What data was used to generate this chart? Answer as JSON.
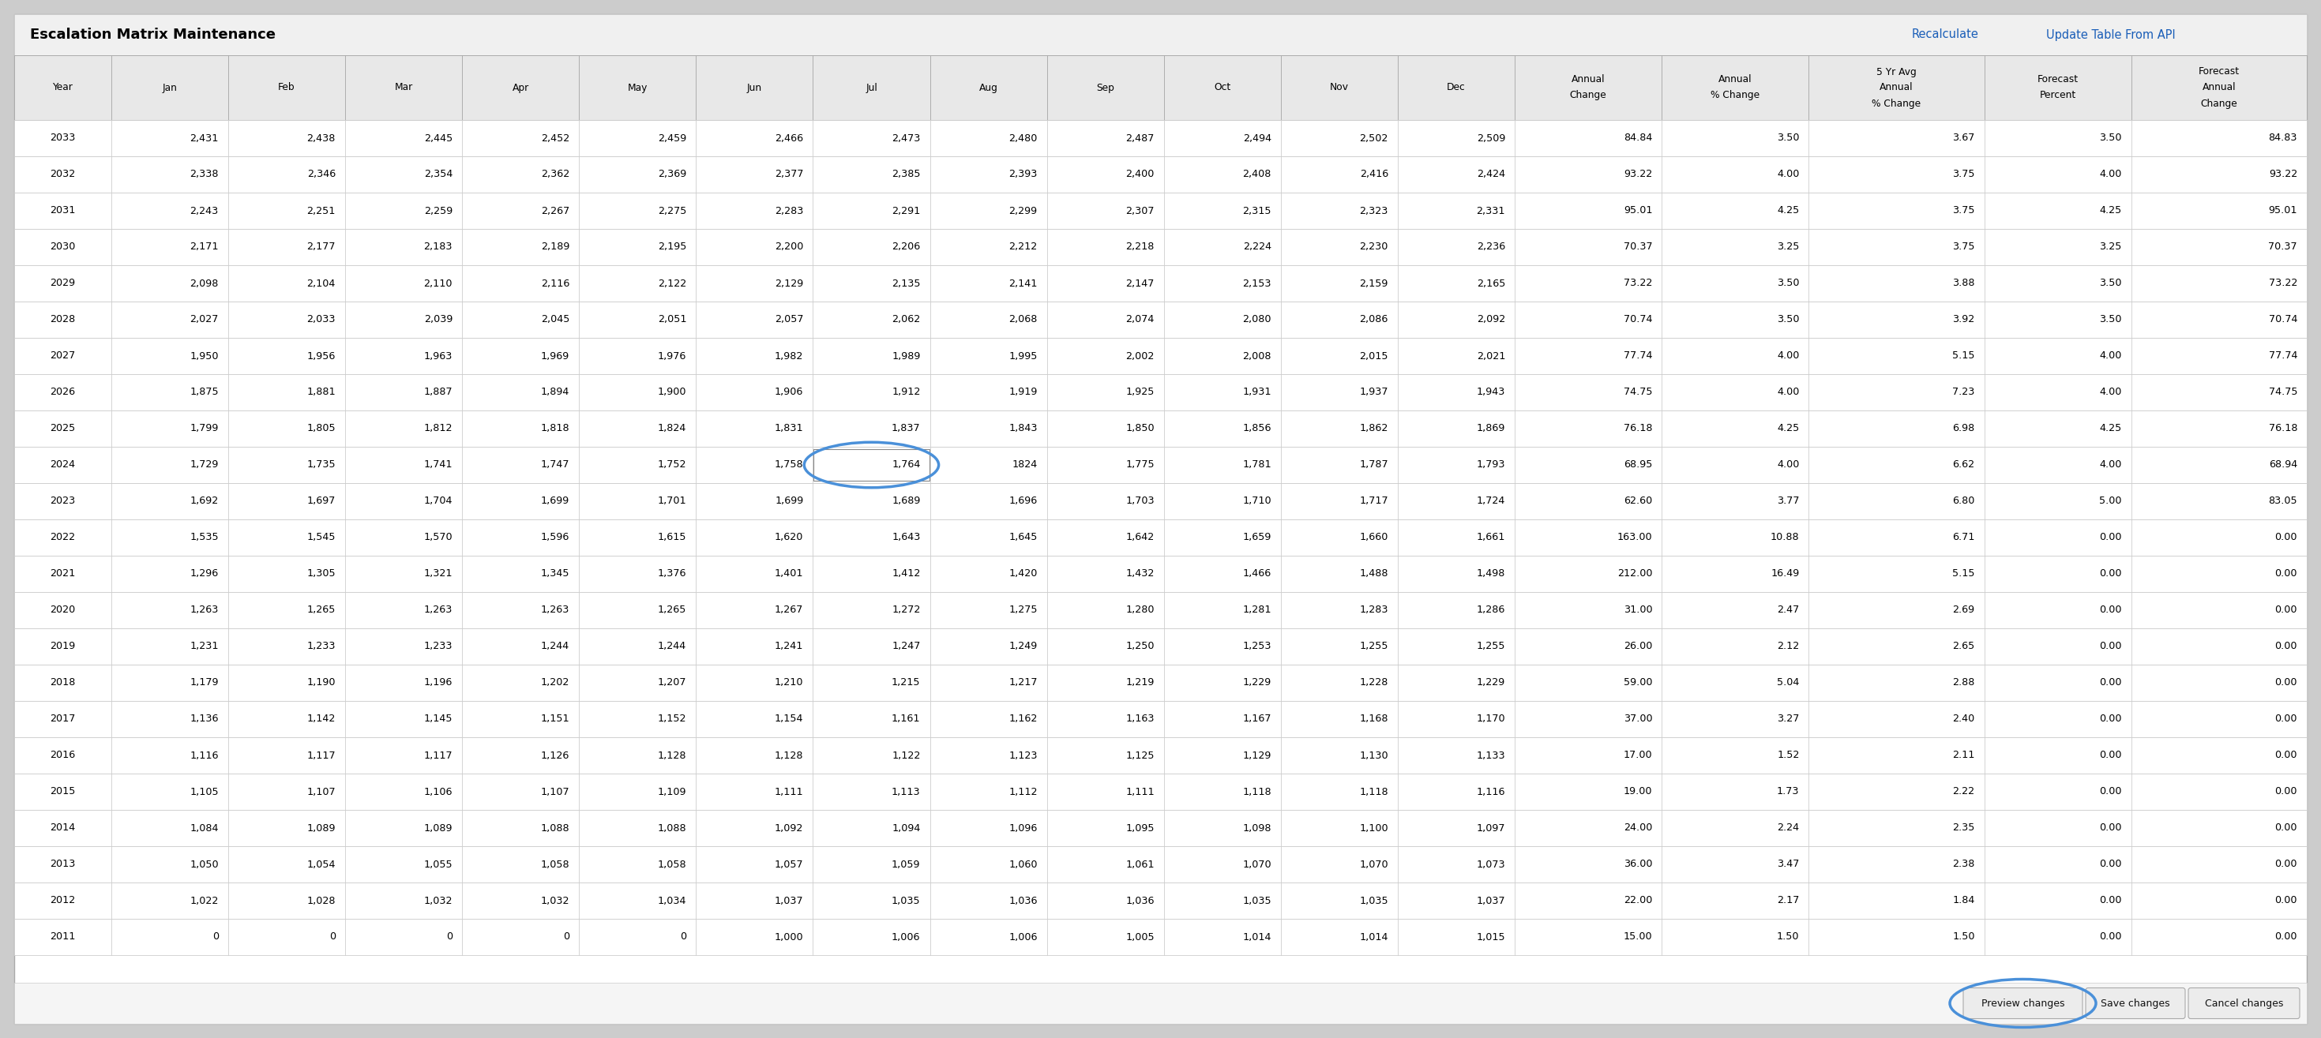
{
  "title": "Escalation Matrix Maintenance",
  "title_links": [
    "Recalculate",
    "Update Table From API"
  ],
  "headers": [
    "Year",
    "Jan",
    "Feb",
    "Mar",
    "Apr",
    "May",
    "Jun",
    "Jul",
    "Aug",
    "Sep",
    "Oct",
    "Nov",
    "Dec",
    "Annual\nChange",
    "Annual\n% Change",
    "5 Yr Avg\nAnnual\n% Change",
    "Forecast\nPercent",
    "Forecast\nAnnual\nChange"
  ],
  "rows": [
    [
      "2033",
      "2,431",
      "2,438",
      "2,445",
      "2,452",
      "2,459",
      "2,466",
      "2,473",
      "2,480",
      "2,487",
      "2,494",
      "2,502",
      "2,509",
      "84.84",
      "3.50",
      "3.67",
      "3.50",
      "84.83"
    ],
    [
      "2032",
      "2,338",
      "2,346",
      "2,354",
      "2,362",
      "2,369",
      "2,377",
      "2,385",
      "2,393",
      "2,400",
      "2,408",
      "2,416",
      "2,424",
      "93.22",
      "4.00",
      "3.75",
      "4.00",
      "93.22"
    ],
    [
      "2031",
      "2,243",
      "2,251",
      "2,259",
      "2,267",
      "2,275",
      "2,283",
      "2,291",
      "2,299",
      "2,307",
      "2,315",
      "2,323",
      "2,331",
      "95.01",
      "4.25",
      "3.75",
      "4.25",
      "95.01"
    ],
    [
      "2030",
      "2,171",
      "2,177",
      "2,183",
      "2,189",
      "2,195",
      "2,200",
      "2,206",
      "2,212",
      "2,218",
      "2,224",
      "2,230",
      "2,236",
      "70.37",
      "3.25",
      "3.75",
      "3.25",
      "70.37"
    ],
    [
      "2029",
      "2,098",
      "2,104",
      "2,110",
      "2,116",
      "2,122",
      "2,129",
      "2,135",
      "2,141",
      "2,147",
      "2,153",
      "2,159",
      "2,165",
      "73.22",
      "3.50",
      "3.88",
      "3.50",
      "73.22"
    ],
    [
      "2028",
      "2,027",
      "2,033",
      "2,039",
      "2,045",
      "2,051",
      "2,057",
      "2,062",
      "2,068",
      "2,074",
      "2,080",
      "2,086",
      "2,092",
      "70.74",
      "3.50",
      "3.92",
      "3.50",
      "70.74"
    ],
    [
      "2027",
      "1,950",
      "1,956",
      "1,963",
      "1,969",
      "1,976",
      "1,982",
      "1,989",
      "1,995",
      "2,002",
      "2,008",
      "2,015",
      "2,021",
      "77.74",
      "4.00",
      "5.15",
      "4.00",
      "77.74"
    ],
    [
      "2026",
      "1,875",
      "1,881",
      "1,887",
      "1,894",
      "1,900",
      "1,906",
      "1,912",
      "1,919",
      "1,925",
      "1,931",
      "1,937",
      "1,943",
      "74.75",
      "4.00",
      "7.23",
      "4.00",
      "74.75"
    ],
    [
      "2025",
      "1,799",
      "1,805",
      "1,812",
      "1,818",
      "1,824",
      "1,831",
      "1,837",
      "1,843",
      "1,850",
      "1,856",
      "1,862",
      "1,869",
      "76.18",
      "4.25",
      "6.98",
      "4.25",
      "76.18"
    ],
    [
      "2024",
      "1,729",
      "1,735",
      "1,741",
      "1,747",
      "1,752",
      "1,758",
      "1,764",
      "1824",
      "1,775",
      "1,781",
      "1,787",
      "1,793",
      "68.95",
      "4.00",
      "6.62",
      "4.00",
      "68.94"
    ],
    [
      "2023",
      "1,692",
      "1,697",
      "1,704",
      "1,699",
      "1,701",
      "1,699",
      "1,689",
      "1,696",
      "1,703",
      "1,710",
      "1,717",
      "1,724",
      "62.60",
      "3.77",
      "6.80",
      "5.00",
      "83.05"
    ],
    [
      "2022",
      "1,535",
      "1,545",
      "1,570",
      "1,596",
      "1,615",
      "1,620",
      "1,643",
      "1,645",
      "1,642",
      "1,659",
      "1,660",
      "1,661",
      "163.00",
      "10.88",
      "6.71",
      "0.00",
      "0.00"
    ],
    [
      "2021",
      "1,296",
      "1,305",
      "1,321",
      "1,345",
      "1,376",
      "1,401",
      "1,412",
      "1,420",
      "1,432",
      "1,466",
      "1,488",
      "1,498",
      "212.00",
      "16.49",
      "5.15",
      "0.00",
      "0.00"
    ],
    [
      "2020",
      "1,263",
      "1,265",
      "1,263",
      "1,263",
      "1,265",
      "1,267",
      "1,272",
      "1,275",
      "1,280",
      "1,281",
      "1,283",
      "1,286",
      "31.00",
      "2.47",
      "2.69",
      "0.00",
      "0.00"
    ],
    [
      "2019",
      "1,231",
      "1,233",
      "1,233",
      "1,244",
      "1,244",
      "1,241",
      "1,247",
      "1,249",
      "1,250",
      "1,253",
      "1,255",
      "1,255",
      "26.00",
      "2.12",
      "2.65",
      "0.00",
      "0.00"
    ],
    [
      "2018",
      "1,179",
      "1,190",
      "1,196",
      "1,202",
      "1,207",
      "1,210",
      "1,215",
      "1,217",
      "1,219",
      "1,229",
      "1,228",
      "1,229",
      "59.00",
      "5.04",
      "2.88",
      "0.00",
      "0.00"
    ],
    [
      "2017",
      "1,136",
      "1,142",
      "1,145",
      "1,151",
      "1,152",
      "1,154",
      "1,161",
      "1,162",
      "1,163",
      "1,167",
      "1,168",
      "1,170",
      "37.00",
      "3.27",
      "2.40",
      "0.00",
      "0.00"
    ],
    [
      "2016",
      "1,116",
      "1,117",
      "1,117",
      "1,126",
      "1,128",
      "1,128",
      "1,122",
      "1,123",
      "1,125",
      "1,129",
      "1,130",
      "1,133",
      "17.00",
      "1.52",
      "2.11",
      "0.00",
      "0.00"
    ],
    [
      "2015",
      "1,105",
      "1,107",
      "1,106",
      "1,107",
      "1,109",
      "1,111",
      "1,113",
      "1,112",
      "1,111",
      "1,118",
      "1,118",
      "1,116",
      "19.00",
      "1.73",
      "2.22",
      "0.00",
      "0.00"
    ],
    [
      "2014",
      "1,084",
      "1,089",
      "1,089",
      "1,088",
      "1,088",
      "1,092",
      "1,094",
      "1,096",
      "1,095",
      "1,098",
      "1,100",
      "1,097",
      "24.00",
      "2.24",
      "2.35",
      "0.00",
      "0.00"
    ],
    [
      "2013",
      "1,050",
      "1,054",
      "1,055",
      "1,058",
      "1,058",
      "1,057",
      "1,059",
      "1,060",
      "1,061",
      "1,070",
      "1,070",
      "1,073",
      "36.00",
      "3.47",
      "2.38",
      "0.00",
      "0.00"
    ],
    [
      "2012",
      "1,022",
      "1,028",
      "1,032",
      "1,032",
      "1,034",
      "1,037",
      "1,035",
      "1,036",
      "1,036",
      "1,035",
      "1,035",
      "1,037",
      "22.00",
      "2.17",
      "1.84",
      "0.00",
      "0.00"
    ],
    [
      "2011",
      "0",
      "0",
      "0",
      "0",
      "0",
      "1,000",
      "1,006",
      "1,006",
      "1,005",
      "1,014",
      "1,014",
      "1,015",
      "15.00",
      "1.50",
      "1.50",
      "0.00",
      "0.00"
    ]
  ],
  "highlighted_cell_row": 9,
  "highlighted_cell_col": 7,
  "circle_color": "#4a90d9",
  "text_color_link": "#1a5eb8",
  "bg_outer": "#cccccc",
  "bg_main": "#ffffff",
  "bg_title_bar": "#f0f0f0",
  "bg_header": "#e8e8e8",
  "bg_row_white": "#ffffff",
  "border_color": "#cccccc",
  "border_dark": "#aaaaaa"
}
